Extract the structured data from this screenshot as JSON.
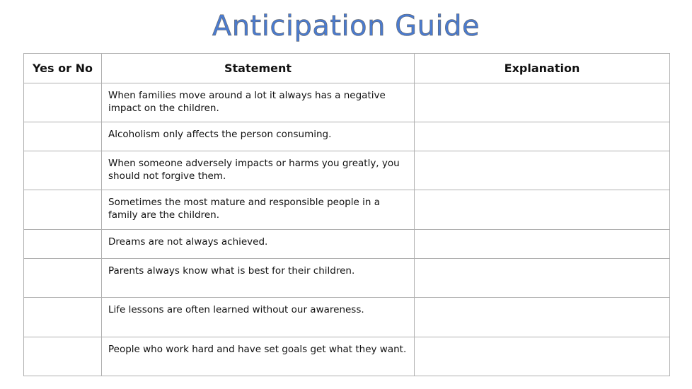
{
  "title": "Anticipation Guide",
  "headers": {
    "yes_no": "Yes or No",
    "statement": "Statement",
    "explanation": "Explanation"
  },
  "rows": [
    "When families move around a lot it always has a negative impact on the children.",
    "Alcoholism only affects the person consuming.",
    "When someone adversely impacts or harms you greatly, you should not forgive them.",
    "Sometimes the most mature and responsible people in a family are the children.",
    "Dreams are not always achieved.",
    "Parents always know what is best for their children.",
    "Life lessons are often learned without our awareness.",
    "People who work hard and have set goals get what they want."
  ]
}
